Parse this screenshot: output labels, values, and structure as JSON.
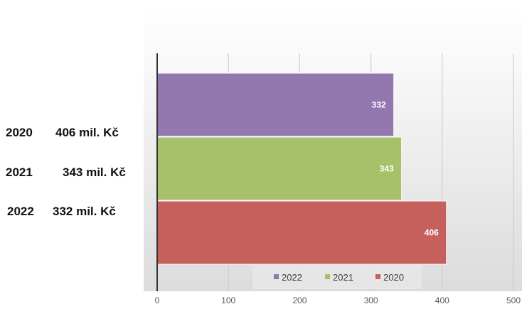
{
  "side_labels": [
    {
      "year": "2020",
      "amount": "406 mil. Kč"
    },
    {
      "year": "2021",
      "amount": "343 mil. Kč"
    },
    {
      "year": "2022",
      "amount": "332 mil. Kč"
    }
  ],
  "chart_data": {
    "type": "bar",
    "orientation": "horizontal",
    "series": [
      {
        "name": "2022",
        "value": 332,
        "color": "#9378b0"
      },
      {
        "name": "2021",
        "value": 343,
        "color": "#a7c06a"
      },
      {
        "name": "2020",
        "value": 406,
        "color": "#c5605c"
      }
    ],
    "xlim": [
      0,
      500
    ],
    "xticks": [
      "0",
      "100",
      "200",
      "300",
      "400",
      "500"
    ],
    "legend": [
      "2022",
      "2021",
      "2020"
    ],
    "legend_position": "bottom",
    "grid": true
  }
}
